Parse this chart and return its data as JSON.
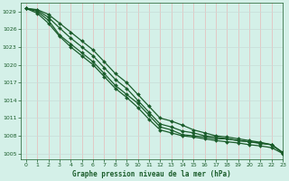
{
  "title": "Graphe pression niveau de la mer (hPa)",
  "background_color": "#d4f0e8",
  "grid_color_v": "#e8b8b8",
  "grid_color_h": "#c8ddd8",
  "line_color": "#1a5c2a",
  "xlim": [
    -0.5,
    23
  ],
  "ylim": [
    1004.0,
    1030.5
  ],
  "yticks": [
    1005,
    1008,
    1011,
    1014,
    1017,
    1020,
    1023,
    1026,
    1029
  ],
  "xticks": [
    0,
    1,
    2,
    3,
    4,
    5,
    6,
    7,
    8,
    9,
    10,
    11,
    12,
    13,
    14,
    15,
    16,
    17,
    18,
    19,
    20,
    21,
    22,
    23
  ],
  "series": [
    [
      1029.5,
      1029.0,
      1027.5,
      1025.0,
      1023.5,
      1022.0,
      1020.5,
      1018.5,
      1016.5,
      1015.0,
      1013.5,
      1011.5,
      1009.5,
      1009.0,
      1008.2,
      1008.0,
      1007.8,
      1007.5,
      1007.5,
      1007.2,
      1007.0,
      1006.7,
      1006.5,
      1005.2
    ],
    [
      1029.5,
      1028.7,
      1027.0,
      1024.8,
      1023.0,
      1021.5,
      1020.0,
      1018.0,
      1016.0,
      1014.5,
      1012.8,
      1010.8,
      1009.0,
      1008.5,
      1008.0,
      1007.8,
      1007.5,
      1007.2,
      1007.0,
      1006.8,
      1006.5,
      1006.3,
      1006.0,
      1005.0
    ],
    [
      1029.5,
      1029.2,
      1028.0,
      1026.2,
      1024.5,
      1023.0,
      1021.5,
      1019.5,
      1017.5,
      1016.0,
      1014.0,
      1012.0,
      1010.0,
      1009.5,
      1008.8,
      1008.5,
      1008.0,
      1007.8,
      1007.5,
      1007.2,
      1007.0,
      1006.8,
      1006.5,
      1005.1
    ],
    [
      1029.5,
      1029.3,
      1028.5,
      1027.0,
      1025.5,
      1024.0,
      1022.5,
      1020.5,
      1018.5,
      1017.0,
      1015.0,
      1013.0,
      1011.0,
      1010.5,
      1009.8,
      1009.0,
      1008.5,
      1008.0,
      1007.8,
      1007.5,
      1007.2,
      1006.9,
      1006.5,
      1005.1
    ]
  ]
}
